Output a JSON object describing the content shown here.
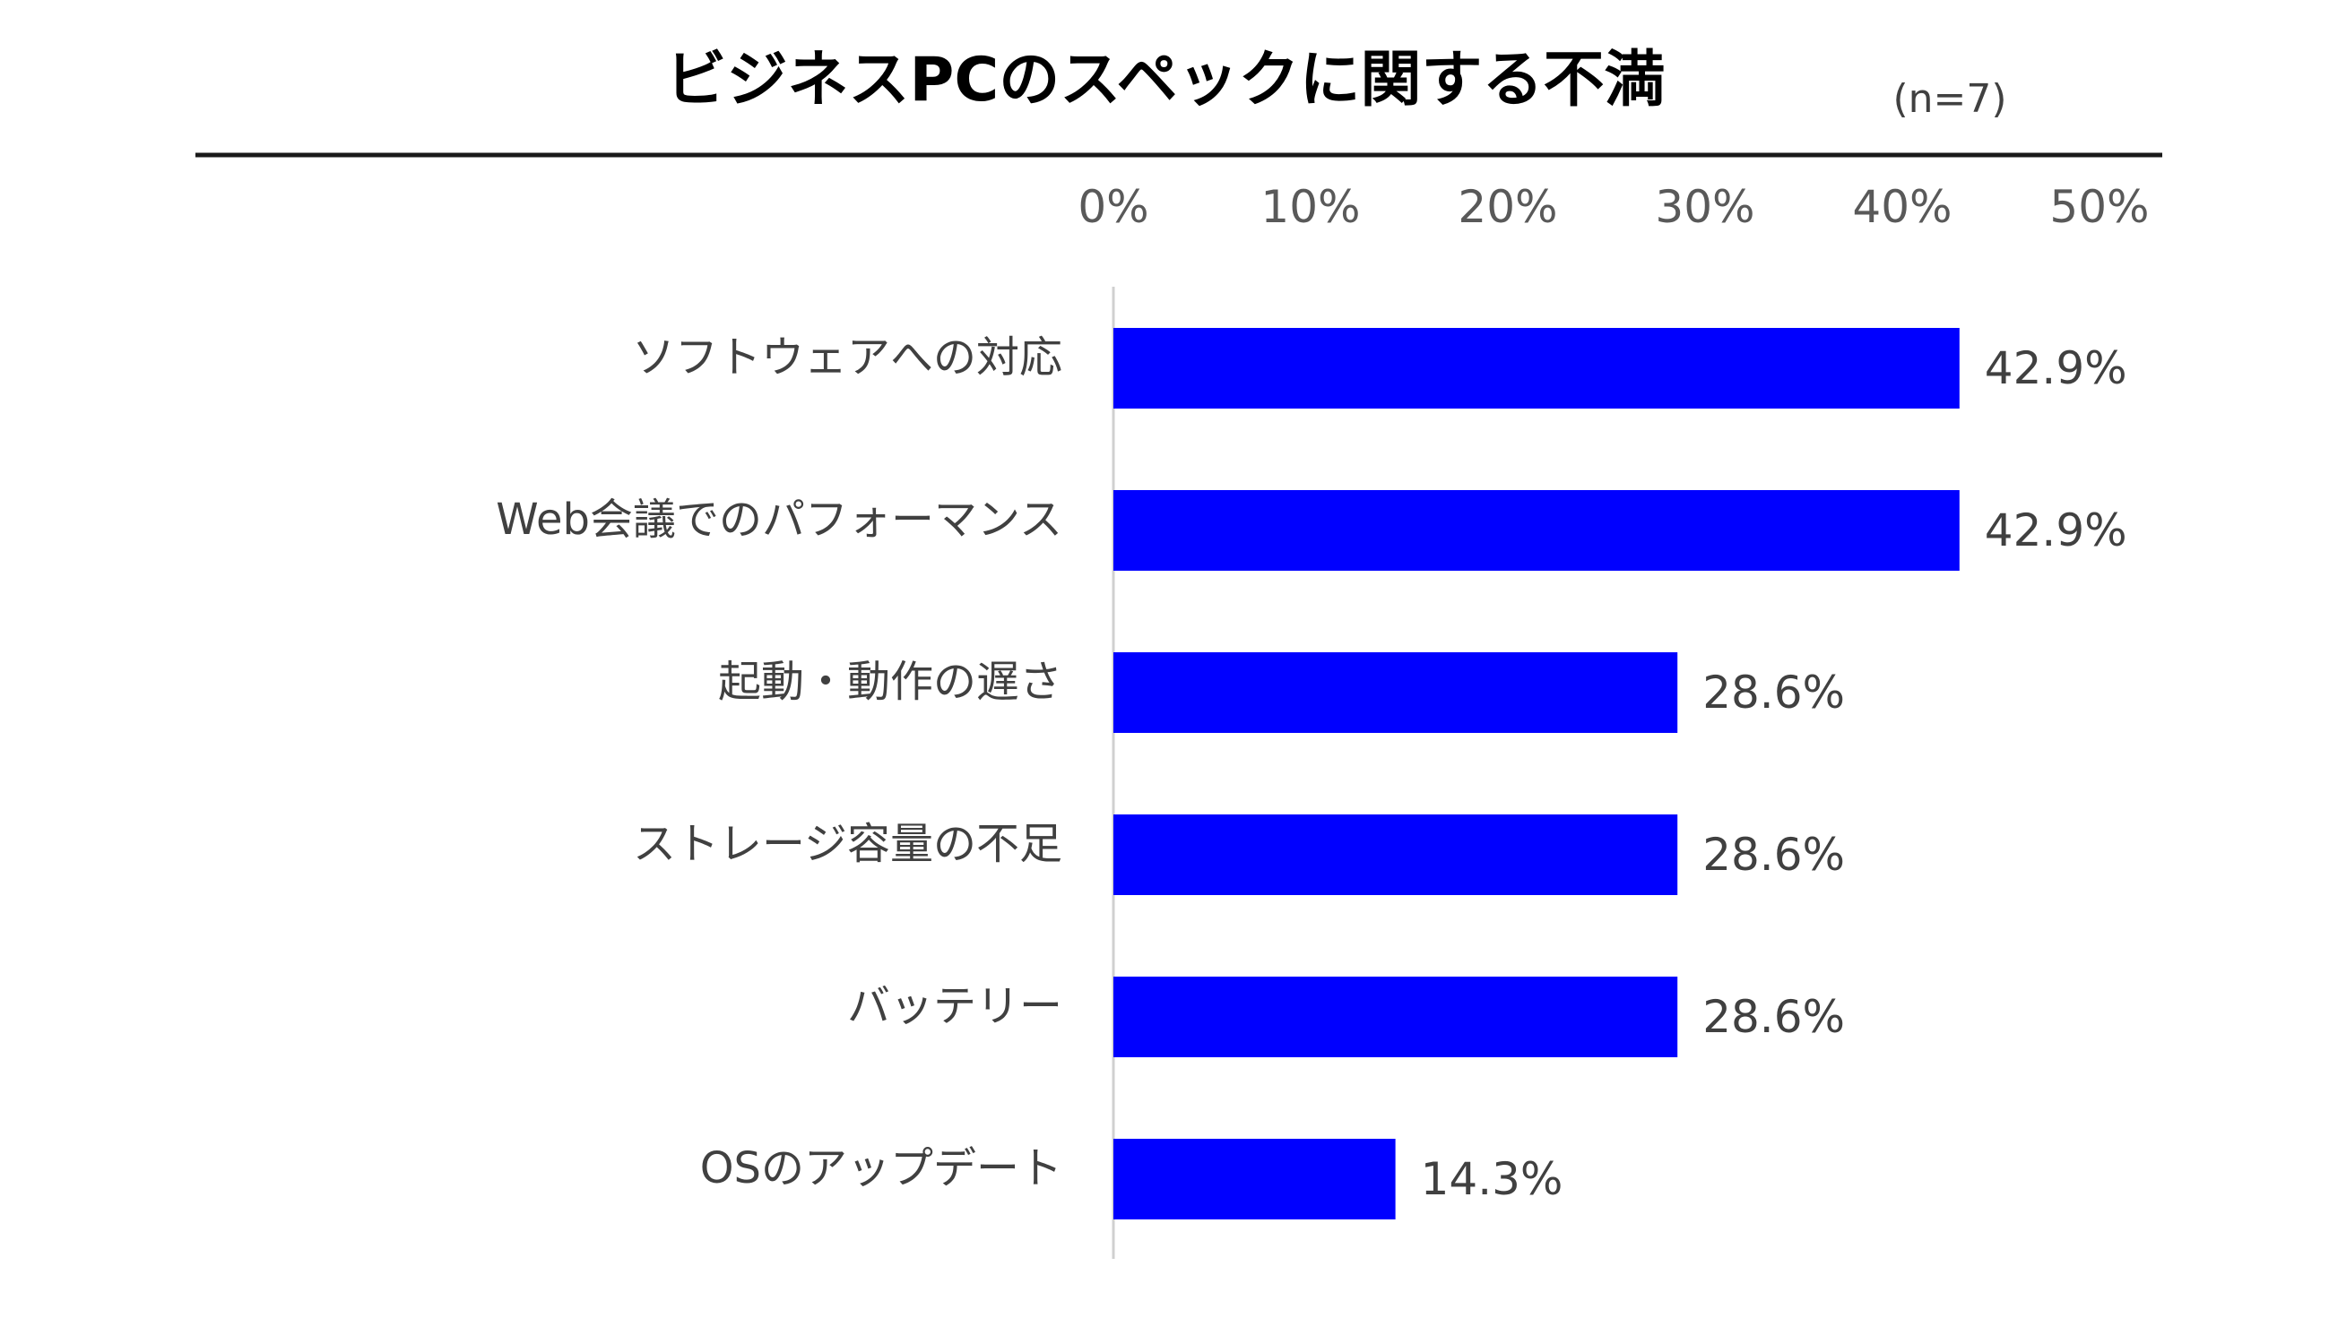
{
  "chart_data": {
    "type": "bar",
    "orientation": "horizontal",
    "title": "ビジネスPCのスペックに関する不満",
    "sample_size": "(n=7)",
    "categories": [
      "ソフトウェアへの対応",
      "Web会議でのパフォーマンス",
      "起動・動作の遅さ",
      "ストレージ容量の不足",
      "バッテリー",
      "OSのアップデート"
    ],
    "values": [
      42.9,
      42.9,
      28.6,
      28.6,
      28.6,
      14.3
    ],
    "value_labels": [
      "42.9%",
      "42.9%",
      "28.6%",
      "28.6%",
      "28.6%",
      "14.3%"
    ],
    "xlim": [
      0,
      50
    ],
    "x_ticks": [
      0,
      10,
      20,
      30,
      40,
      50
    ],
    "x_tick_labels": [
      "0%",
      "10%",
      "20%",
      "30%",
      "40%",
      "50%"
    ],
    "x_axis_position": "top",
    "grid": false,
    "legend": "none",
    "bar_color": "#0000FF",
    "text_color": "#404040",
    "tick_color": "#595959",
    "title_color": "#000000"
  }
}
